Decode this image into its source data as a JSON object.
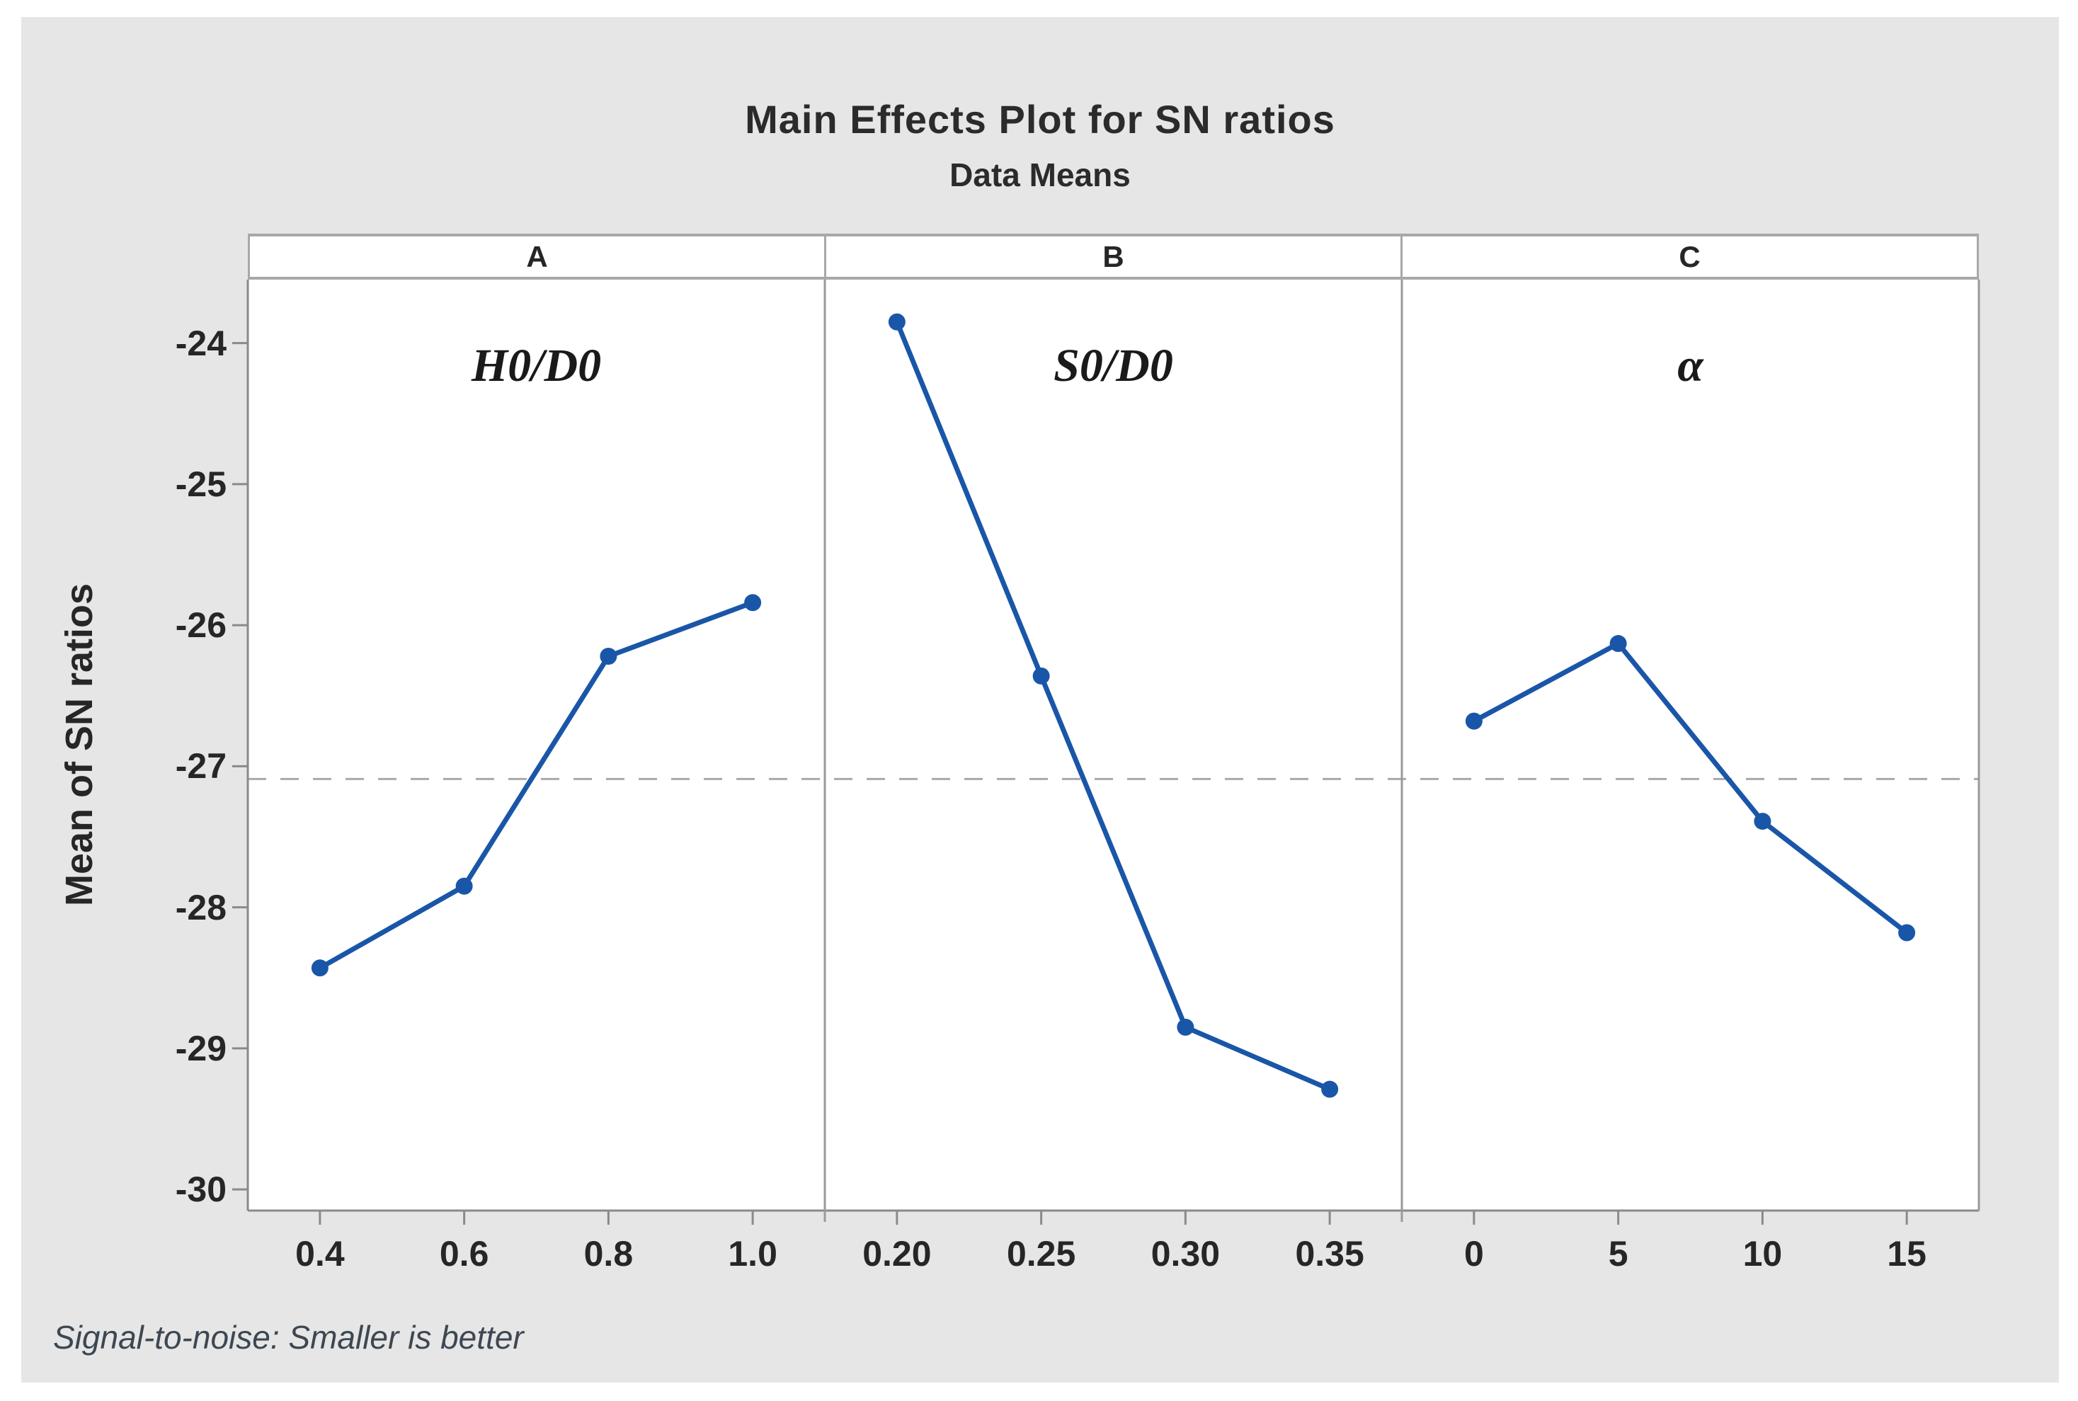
{
  "window": {
    "background": "#ffffff",
    "figure_background": "#e6e6e6"
  },
  "chart_data": {
    "type": "line",
    "title": "Main Effects Plot for SN ratios",
    "subtitle": "Data Means",
    "ylabel": "Mean of SN ratios",
    "footnote": "Signal-to-noise: Smaller is better",
    "ylim": [
      -30.15,
      -23.55
    ],
    "yticks": [
      -24,
      -25,
      -26,
      -27,
      -28,
      -29,
      -30
    ],
    "reference_line_mean": -27.09,
    "grid": "off",
    "legend": "none",
    "panels": [
      {
        "header": "A",
        "factor": "H0/D0",
        "categories": [
          "0.4",
          "0.6",
          "0.8",
          "1.0"
        ],
        "values": [
          -28.43,
          -27.85,
          -26.22,
          -25.84
        ]
      },
      {
        "header": "B",
        "factor": "S0/D0",
        "categories": [
          "0.20",
          "0.25",
          "0.30",
          "0.35"
        ],
        "values": [
          -23.85,
          -26.36,
          -28.85,
          -29.29
        ]
      },
      {
        "header": "C",
        "factor": "α",
        "categories": [
          "0",
          "5",
          "10",
          "15"
        ],
        "values": [
          -26.68,
          -26.13,
          -27.39,
          -28.18
        ]
      }
    ],
    "series_color": "#1a56a8",
    "marker": "circle",
    "reference_line_color": "#a9a9a9",
    "axis_color": "#8a8a8a",
    "text_color": "#262626",
    "footnote_color": "#3d4752"
  }
}
